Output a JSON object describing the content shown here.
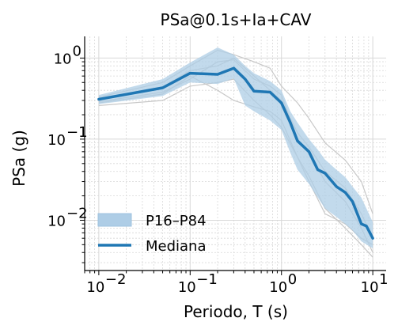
{
  "chart_data": {
    "type": "line",
    "title": "PSa@0.1s+Ia+CAV",
    "xlabel": "Periodo, T (s)",
    "ylabel": "PSa (g)",
    "xscale": "log",
    "yscale": "log",
    "xlim": [
      0.007,
      14
    ],
    "ylim": [
      0.0024,
      1.85
    ],
    "x_ticks": [
      {
        "value": 0.01,
        "base": "10",
        "exp": "−2"
      },
      {
        "value": 0.1,
        "base": "10",
        "exp": "−1"
      },
      {
        "value": 1,
        "base": "10",
        "exp": "0"
      },
      {
        "value": 10,
        "base": "10",
        "exp": "1"
      }
    ],
    "y_ticks": [
      {
        "value": 0.01,
        "base": "10",
        "exp": "−2"
      },
      {
        "value": 0.1,
        "base": "10",
        "exp": "−1"
      },
      {
        "value": 1,
        "base": "10",
        "exp": "0"
      }
    ],
    "grid": true,
    "legend_position": "lower-left",
    "colors": {
      "median": "#1f77b4",
      "band": "#aecde6",
      "records": "#c8c8c8",
      "grid": "#d8d8d8"
    },
    "band": {
      "name": "P16–P84",
      "x": [
        0.01,
        0.05,
        0.1,
        0.2,
        0.3,
        0.4,
        0.5,
        0.75,
        1.0,
        1.25,
        1.5,
        2.0,
        2.5,
        3.0,
        4.0,
        5.0,
        6.0,
        7.5,
        10.0
      ],
      "lower": [
        0.27,
        0.34,
        0.5,
        0.48,
        0.56,
        0.26,
        0.22,
        0.17,
        0.13,
        0.068,
        0.042,
        0.028,
        0.019,
        0.014,
        0.011,
        0.009,
        0.0075,
        0.0055,
        0.0045
      ],
      "upper": [
        0.35,
        0.55,
        0.88,
        1.35,
        1.1,
        0.8,
        0.65,
        0.52,
        0.4,
        0.22,
        0.16,
        0.1,
        0.074,
        0.056,
        0.042,
        0.034,
        0.026,
        0.019,
        0.0095
      ]
    },
    "median": {
      "name": "Mediana",
      "x": [
        0.01,
        0.05,
        0.1,
        0.2,
        0.3,
        0.4,
        0.5,
        0.75,
        1.0,
        1.25,
        1.5,
        2.0,
        2.5,
        3.0,
        4.0,
        5.0,
        6.0,
        7.5,
        8.5,
        10.0
      ],
      "values": [
        0.31,
        0.43,
        0.65,
        0.63,
        0.75,
        0.55,
        0.39,
        0.38,
        0.28,
        0.16,
        0.095,
        0.07,
        0.042,
        0.038,
        0.026,
        0.022,
        0.017,
        0.009,
        0.0085,
        0.006
      ]
    },
    "records": [
      {
        "x": [
          0.01,
          0.05,
          0.1,
          0.2,
          0.3,
          0.5,
          0.75,
          1.0,
          1.5,
          2.0,
          3.0,
          5.0,
          7.5,
          10.0
        ],
        "values": [
          0.29,
          0.38,
          0.55,
          0.9,
          0.95,
          0.55,
          0.45,
          0.35,
          0.1,
          0.07,
          0.03,
          0.017,
          0.008,
          0.004
        ]
      },
      {
        "x": [
          0.01,
          0.05,
          0.1,
          0.2,
          0.3,
          0.5,
          0.75,
          1.0,
          1.5,
          2.0,
          3.0,
          5.0,
          7.5,
          10.0
        ],
        "values": [
          0.26,
          0.3,
          0.45,
          0.5,
          0.55,
          0.3,
          0.2,
          0.14,
          0.06,
          0.035,
          0.014,
          0.008,
          0.005,
          0.0035
        ]
      },
      {
        "x": [
          0.01,
          0.05,
          0.1,
          0.2,
          0.3,
          0.5,
          0.75,
          1.0,
          1.5,
          2.0,
          3.0,
          5.0,
          7.5,
          10.0
        ],
        "values": [
          0.33,
          0.5,
          0.8,
          1.25,
          1.1,
          0.9,
          0.75,
          0.45,
          0.28,
          0.18,
          0.09,
          0.055,
          0.03,
          0.012
        ]
      },
      {
        "x": [
          0.01,
          0.05,
          0.1,
          0.2,
          0.3,
          0.5,
          0.75,
          1.0,
          1.5,
          2.0,
          3.0,
          5.0,
          7.5,
          10.0
        ],
        "values": [
          0.3,
          0.44,
          0.7,
          0.8,
          1.0,
          0.6,
          0.4,
          0.3,
          0.12,
          0.08,
          0.04,
          0.025,
          0.012,
          0.006
        ]
      },
      {
        "x": [
          0.01,
          0.05,
          0.1,
          0.2,
          0.3,
          0.5,
          0.75,
          1.0,
          1.5,
          2.0,
          3.0,
          5.0,
          7.5,
          10.0
        ],
        "values": [
          0.28,
          0.36,
          0.6,
          0.4,
          0.3,
          0.25,
          0.22,
          0.17,
          0.06,
          0.03,
          0.012,
          0.009,
          0.006,
          0.005
        ]
      }
    ]
  }
}
